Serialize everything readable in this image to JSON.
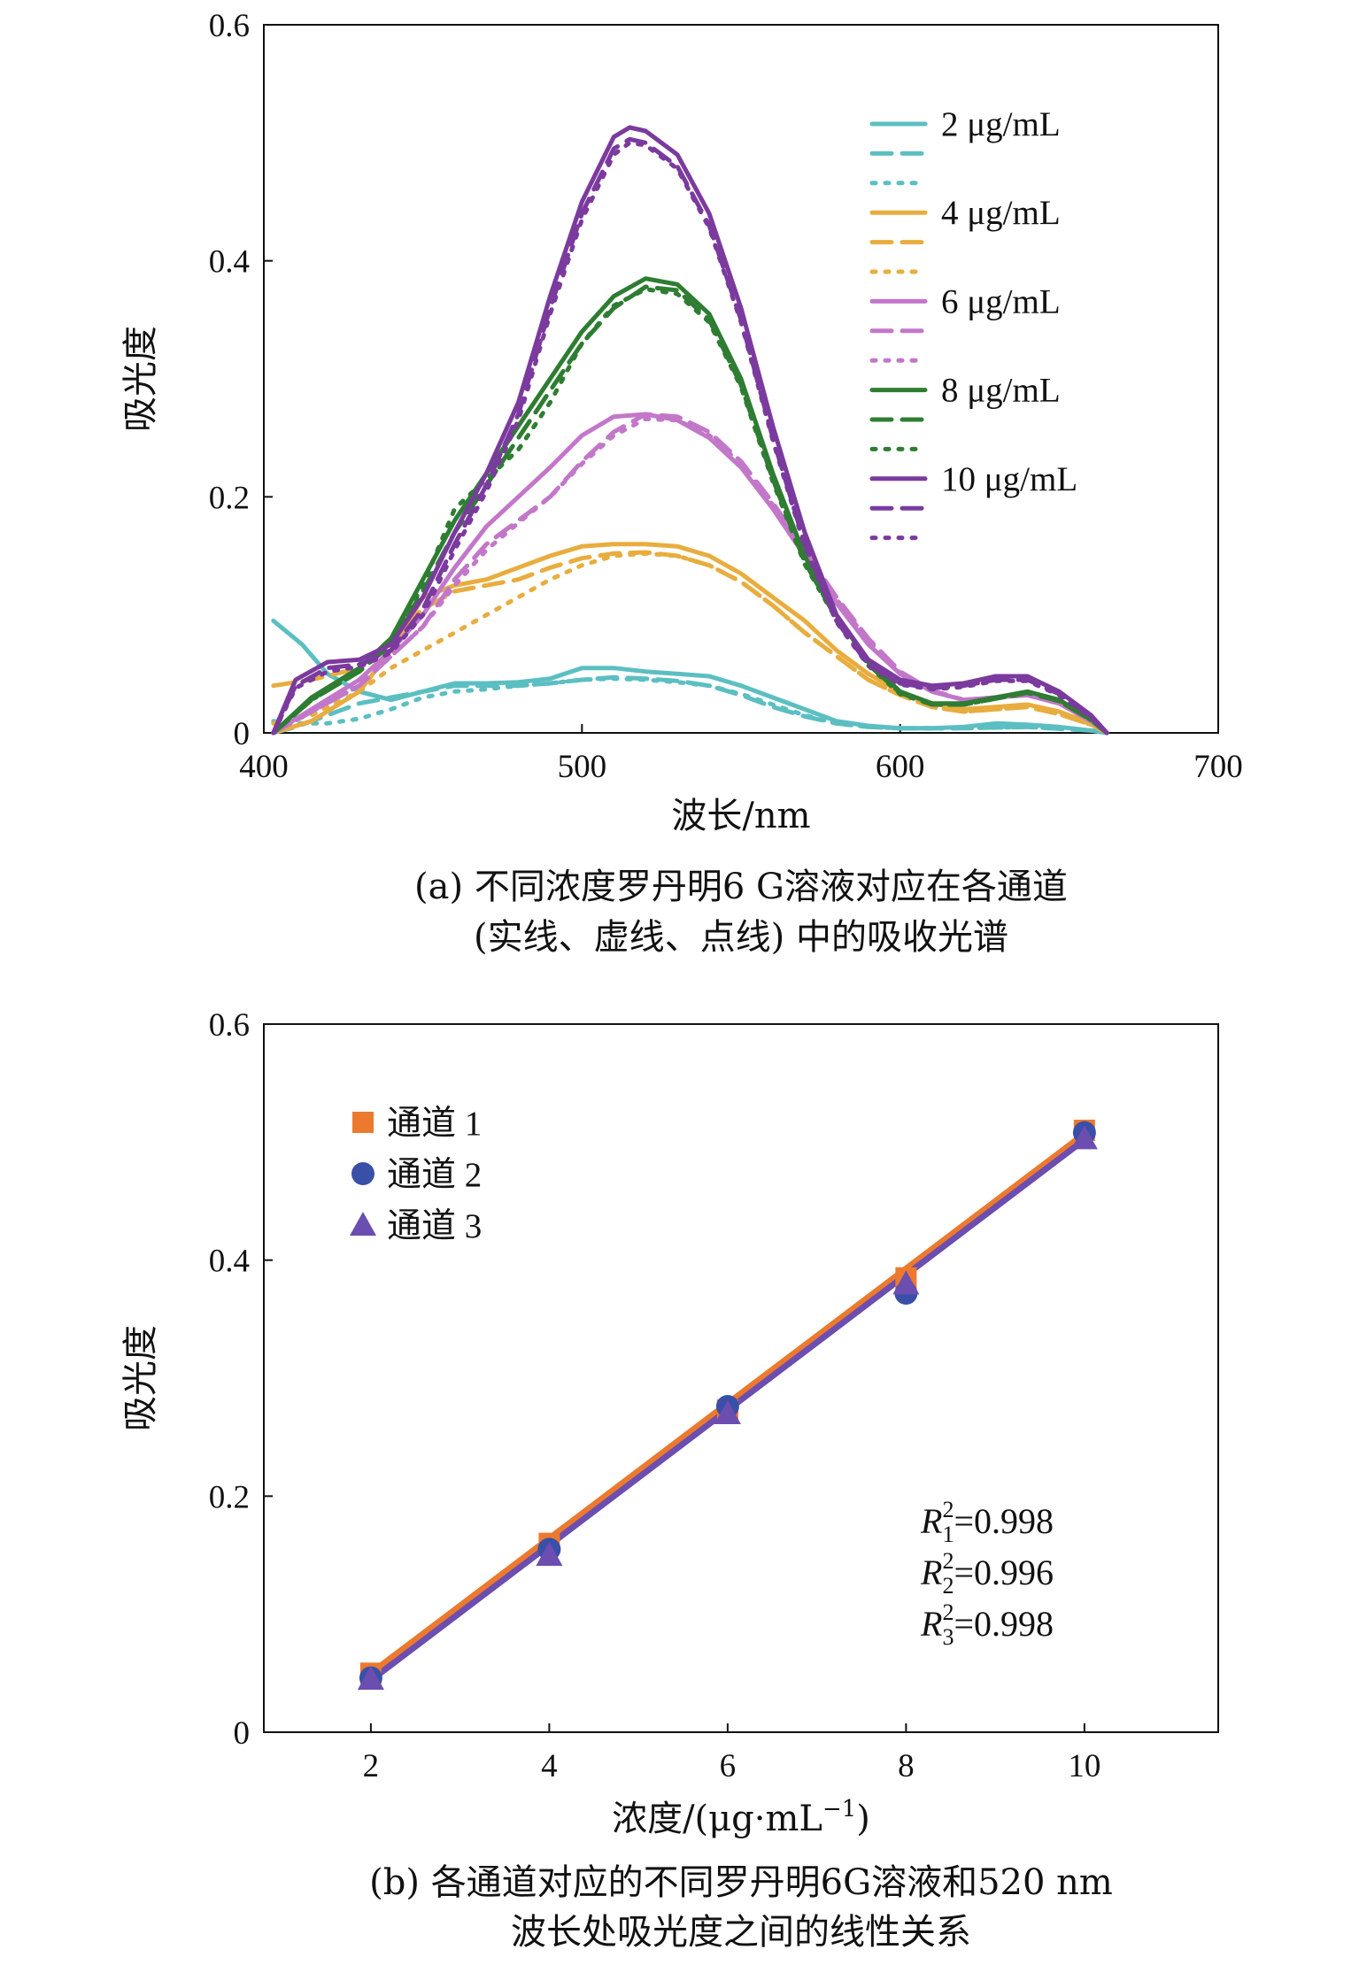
{
  "chart_data": [
    {
      "type": "line",
      "xlabel": "波长/nm",
      "ylabel": "吸光度",
      "xlim": [
        400,
        700
      ],
      "ylim": [
        0,
        0.6
      ],
      "xticks": [
        "400",
        "500",
        "600",
        "700"
      ],
      "yticks": [
        "0",
        "0.2",
        "0.4",
        "0.6"
      ],
      "caption": [
        "(a) 不同浓度罗丹明6 G溶液对应在各通道",
        "(实线、虚线、点线) 中的吸收光谱"
      ],
      "legend_placement": "top-right",
      "series": [
        {
          "name": "2 μg/mL",
          "color": "#5bbfc2",
          "style": "solid",
          "x": [
            403,
            412,
            420,
            430,
            440,
            450,
            460,
            470,
            480,
            490,
            500,
            510,
            520,
            530,
            540,
            550,
            560,
            570,
            580,
            590,
            600,
            610,
            620,
            630,
            640,
            650,
            660,
            665
          ],
          "y": [
            0.095,
            0.075,
            0.05,
            0.035,
            0.028,
            0.035,
            0.042,
            0.042,
            0.043,
            0.046,
            0.055,
            0.055,
            0.052,
            0.05,
            0.048,
            0.04,
            0.03,
            0.02,
            0.01,
            0.006,
            0.004,
            0.004,
            0.005,
            0.008,
            0.007,
            0.005,
            0.002,
            0.0
          ]
        },
        {
          "name": "",
          "color": "#5bbfc2",
          "style": "dashed",
          "x": [
            403,
            410,
            420,
            430,
            440,
            450,
            460,
            470,
            480,
            490,
            500,
            510,
            520,
            530,
            540,
            550,
            560,
            570,
            580,
            590,
            600,
            620,
            640,
            660,
            665
          ],
          "y": [
            0.0,
            0.005,
            0.015,
            0.025,
            0.03,
            0.035,
            0.04,
            0.04,
            0.04,
            0.042,
            0.045,
            0.047,
            0.046,
            0.044,
            0.04,
            0.032,
            0.022,
            0.014,
            0.008,
            0.005,
            0.004,
            0.004,
            0.005,
            0.002,
            0.0
          ]
        },
        {
          "name": "",
          "color": "#5bbfc2",
          "style": "dotted",
          "x": [
            403,
            410,
            420,
            430,
            440,
            450,
            460,
            470,
            480,
            490,
            500,
            510,
            520,
            530,
            540,
            550,
            560,
            570,
            580,
            590,
            600,
            620,
            640,
            660,
            665
          ],
          "y": [
            0.01,
            0.008,
            0.008,
            0.012,
            0.02,
            0.03,
            0.035,
            0.037,
            0.04,
            0.042,
            0.045,
            0.046,
            0.045,
            0.043,
            0.04,
            0.033,
            0.024,
            0.015,
            0.008,
            0.005,
            0.004,
            0.004,
            0.005,
            0.002,
            0.0
          ]
        },
        {
          "name": "4 μg/mL",
          "color": "#e8ad3e",
          "style": "solid",
          "x": [
            403,
            415,
            430,
            440,
            450,
            460,
            470,
            480,
            490,
            500,
            510,
            520,
            530,
            540,
            550,
            560,
            570,
            580,
            590,
            600,
            610,
            620,
            630,
            640,
            650,
            660,
            665
          ],
          "y": [
            0.0,
            0.01,
            0.035,
            0.07,
            0.115,
            0.125,
            0.13,
            0.14,
            0.15,
            0.158,
            0.16,
            0.16,
            0.158,
            0.15,
            0.135,
            0.115,
            0.095,
            0.07,
            0.05,
            0.035,
            0.025,
            0.02,
            0.022,
            0.024,
            0.018,
            0.008,
            0.0
          ]
        },
        {
          "name": "",
          "color": "#e8ad3e",
          "style": "dashed",
          "x": [
            403,
            415,
            430,
            440,
            450,
            460,
            470,
            480,
            490,
            500,
            510,
            520,
            530,
            540,
            550,
            560,
            570,
            580,
            590,
            600,
            610,
            620,
            630,
            640,
            650,
            660,
            665
          ],
          "y": [
            0.04,
            0.045,
            0.055,
            0.08,
            0.105,
            0.12,
            0.125,
            0.13,
            0.14,
            0.148,
            0.152,
            0.153,
            0.15,
            0.142,
            0.128,
            0.108,
            0.085,
            0.065,
            0.045,
            0.032,
            0.022,
            0.018,
            0.02,
            0.022,
            0.016,
            0.007,
            0.0
          ]
        },
        {
          "name": "",
          "color": "#e8ad3e",
          "style": "dotted",
          "x": [
            403,
            415,
            430,
            440,
            450,
            460,
            470,
            480,
            490,
            500,
            510,
            520,
            530,
            540,
            550,
            560,
            570,
            580,
            590,
            600,
            610,
            620,
            630,
            640,
            650,
            660,
            665
          ],
          "y": [
            0.008,
            0.015,
            0.035,
            0.055,
            0.07,
            0.085,
            0.1,
            0.115,
            0.13,
            0.142,
            0.15,
            0.152,
            0.15,
            0.142,
            0.128,
            0.108,
            0.085,
            0.065,
            0.045,
            0.032,
            0.022,
            0.018,
            0.02,
            0.022,
            0.016,
            0.007,
            0.0
          ]
        },
        {
          "name": "6 μg/mL",
          "color": "#c277c9",
          "style": "solid",
          "x": [
            403,
            415,
            430,
            440,
            450,
            460,
            470,
            480,
            490,
            500,
            510,
            520,
            530,
            540,
            550,
            560,
            570,
            580,
            590,
            600,
            610,
            620,
            630,
            640,
            650,
            660,
            665
          ],
          "y": [
            0.0,
            0.02,
            0.045,
            0.07,
            0.1,
            0.14,
            0.175,
            0.2,
            0.225,
            0.252,
            0.268,
            0.27,
            0.265,
            0.25,
            0.225,
            0.19,
            0.15,
            0.11,
            0.075,
            0.05,
            0.035,
            0.028,
            0.03,
            0.032,
            0.025,
            0.01,
            0.0
          ]
        },
        {
          "name": "",
          "color": "#c277c9",
          "style": "dashed",
          "x": [
            403,
            415,
            430,
            440,
            450,
            460,
            470,
            480,
            490,
            500,
            510,
            520,
            530,
            540,
            550,
            560,
            570,
            580,
            590,
            600,
            610,
            620,
            630,
            640,
            650,
            660,
            665
          ],
          "y": [
            0.0,
            0.018,
            0.04,
            0.065,
            0.09,
            0.13,
            0.16,
            0.18,
            0.2,
            0.23,
            0.255,
            0.27,
            0.268,
            0.255,
            0.23,
            0.195,
            0.155,
            0.115,
            0.08,
            0.052,
            0.036,
            0.028,
            0.03,
            0.032,
            0.025,
            0.01,
            0.0
          ]
        },
        {
          "name": "",
          "color": "#c277c9",
          "style": "dotted",
          "x": [
            403,
            415,
            430,
            440,
            450,
            460,
            470,
            480,
            490,
            500,
            510,
            520,
            530,
            540,
            550,
            560,
            570,
            580,
            590,
            600,
            610,
            620,
            630,
            640,
            650,
            660,
            665
          ],
          "y": [
            0.0,
            0.018,
            0.04,
            0.065,
            0.09,
            0.125,
            0.155,
            0.178,
            0.2,
            0.228,
            0.252,
            0.266,
            0.265,
            0.252,
            0.228,
            0.193,
            0.153,
            0.113,
            0.078,
            0.051,
            0.035,
            0.028,
            0.03,
            0.032,
            0.025,
            0.01,
            0.0
          ]
        },
        {
          "name": "8 μg/mL",
          "color": "#2e7d32",
          "style": "solid",
          "x": [
            403,
            415,
            430,
            440,
            450,
            460,
            470,
            480,
            490,
            500,
            510,
            520,
            530,
            540,
            550,
            560,
            570,
            580,
            590,
            600,
            610,
            620,
            630,
            640,
            650,
            660,
            665
          ],
          "y": [
            0.0,
            0.03,
            0.055,
            0.08,
            0.13,
            0.18,
            0.22,
            0.26,
            0.3,
            0.34,
            0.37,
            0.385,
            0.38,
            0.355,
            0.3,
            0.22,
            0.15,
            0.1,
            0.06,
            0.035,
            0.025,
            0.025,
            0.03,
            0.035,
            0.028,
            0.012,
            0.0
          ]
        },
        {
          "name": "",
          "color": "#2e7d32",
          "style": "dashed",
          "x": [
            403,
            415,
            430,
            440,
            450,
            460,
            470,
            480,
            490,
            500,
            510,
            520,
            530,
            540,
            550,
            560,
            570,
            580,
            590,
            600,
            610,
            620,
            630,
            640,
            650,
            660,
            665
          ],
          "y": [
            0.0,
            0.028,
            0.052,
            0.075,
            0.12,
            0.17,
            0.21,
            0.25,
            0.29,
            0.33,
            0.36,
            0.378,
            0.375,
            0.35,
            0.295,
            0.215,
            0.145,
            0.097,
            0.058,
            0.034,
            0.024,
            0.024,
            0.029,
            0.034,
            0.027,
            0.011,
            0.0
          ]
        },
        {
          "name": "",
          "color": "#2e7d32",
          "style": "dotted",
          "x": [
            403,
            415,
            430,
            440,
            450,
            460,
            470,
            480,
            490,
            500,
            510,
            520,
            530,
            540,
            550,
            560,
            570,
            580,
            590,
            600,
            610,
            620,
            630,
            640,
            650,
            660,
            665
          ],
          "y": [
            0.0,
            0.028,
            0.052,
            0.076,
            0.125,
            0.19,
            0.215,
            0.24,
            0.28,
            0.33,
            0.362,
            0.376,
            0.372,
            0.348,
            0.293,
            0.213,
            0.143,
            0.096,
            0.057,
            0.033,
            0.024,
            0.024,
            0.029,
            0.034,
            0.027,
            0.011,
            0.0
          ]
        },
        {
          "name": "10 μg/mL",
          "color": "#7b3a9e",
          "style": "solid",
          "x": [
            403,
            410,
            420,
            430,
            440,
            450,
            460,
            470,
            480,
            490,
            500,
            510,
            515,
            520,
            530,
            540,
            550,
            560,
            570,
            580,
            590,
            600,
            610,
            620,
            630,
            640,
            650,
            660,
            665
          ],
          "y": [
            0.0,
            0.045,
            0.06,
            0.062,
            0.075,
            0.115,
            0.17,
            0.22,
            0.28,
            0.37,
            0.45,
            0.505,
            0.513,
            0.51,
            0.49,
            0.44,
            0.36,
            0.26,
            0.17,
            0.1,
            0.062,
            0.045,
            0.04,
            0.042,
            0.048,
            0.048,
            0.035,
            0.015,
            0.0
          ]
        },
        {
          "name": "",
          "color": "#7b3a9e",
          "style": "dashed",
          "x": [
            403,
            410,
            420,
            430,
            440,
            450,
            460,
            470,
            480,
            490,
            500,
            510,
            515,
            520,
            530,
            540,
            550,
            560,
            570,
            580,
            590,
            600,
            610,
            620,
            630,
            640,
            650,
            660,
            665
          ],
          "y": [
            0.0,
            0.04,
            0.055,
            0.058,
            0.07,
            0.105,
            0.16,
            0.21,
            0.27,
            0.36,
            0.44,
            0.495,
            0.503,
            0.5,
            0.48,
            0.43,
            0.35,
            0.25,
            0.16,
            0.095,
            0.058,
            0.042,
            0.038,
            0.04,
            0.045,
            0.045,
            0.033,
            0.014,
            0.0
          ]
        },
        {
          "name": "",
          "color": "#7b3a9e",
          "style": "dotted",
          "x": [
            403,
            410,
            420,
            430,
            440,
            450,
            460,
            470,
            480,
            490,
            500,
            510,
            515,
            520,
            530,
            540,
            550,
            560,
            570,
            580,
            590,
            600,
            610,
            620,
            630,
            640,
            650,
            660,
            665
          ],
          "y": [
            0.0,
            0.038,
            0.052,
            0.056,
            0.068,
            0.1,
            0.155,
            0.205,
            0.265,
            0.355,
            0.435,
            0.49,
            0.5,
            0.498,
            0.478,
            0.428,
            0.348,
            0.248,
            0.158,
            0.094,
            0.057,
            0.041,
            0.037,
            0.039,
            0.044,
            0.044,
            0.032,
            0.013,
            0.0
          ]
        }
      ]
    },
    {
      "type": "scatter",
      "xlabel": "浓度/(μg·mL",
      "xlabel_sup": "−1",
      "xlabel_end": ")",
      "ylabel": "吸光度",
      "xlim": [
        0.8,
        11.5
      ],
      "ylim": [
        0,
        0.6
      ],
      "xticks": [
        "2",
        "4",
        "6",
        "8",
        "10"
      ],
      "yticks": [
        "0",
        "0.2",
        "0.4",
        "0.6"
      ],
      "caption": [
        "(b) 各通道对应的不同罗丹明6G溶液和520 nm",
        "波长处吸光度之间的线性关系"
      ],
      "legend_placement": "top-left",
      "fit_lines": [
        {
          "color": "#ec7a2e",
          "x": [
            2,
            10
          ],
          "y": [
            0.05,
            0.507
          ]
        },
        {
          "color": "#6b4eb0",
          "x": [
            2,
            10
          ],
          "y": [
            0.044,
            0.502
          ]
        }
      ],
      "series": [
        {
          "name": "通道 1",
          "marker": "square",
          "color": "#ec7a2e",
          "x": [
            2,
            4,
            6,
            8,
            10
          ],
          "y": [
            0.05,
            0.16,
            0.273,
            0.385,
            0.51
          ]
        },
        {
          "name": "通道 2",
          "marker": "circle",
          "color": "#3a4fa8",
          "x": [
            2,
            4,
            6,
            8,
            10
          ],
          "y": [
            0.046,
            0.155,
            0.276,
            0.372,
            0.508
          ]
        },
        {
          "name": "通道 3",
          "marker": "triangle",
          "color": "#6b4eb0",
          "x": [
            2,
            4,
            6,
            8,
            10
          ],
          "y": [
            0.045,
            0.15,
            0.27,
            0.38,
            0.503
          ]
        }
      ],
      "annotations": [
        {
          "base": "R",
          "sub": "1",
          "sup": "2",
          "value": "=0.998"
        },
        {
          "base": "R",
          "sub": "2",
          "sup": "2",
          "value": "=0.996"
        },
        {
          "base": "R",
          "sub": "3",
          "sup": "2",
          "value": "=0.998"
        }
      ]
    }
  ]
}
